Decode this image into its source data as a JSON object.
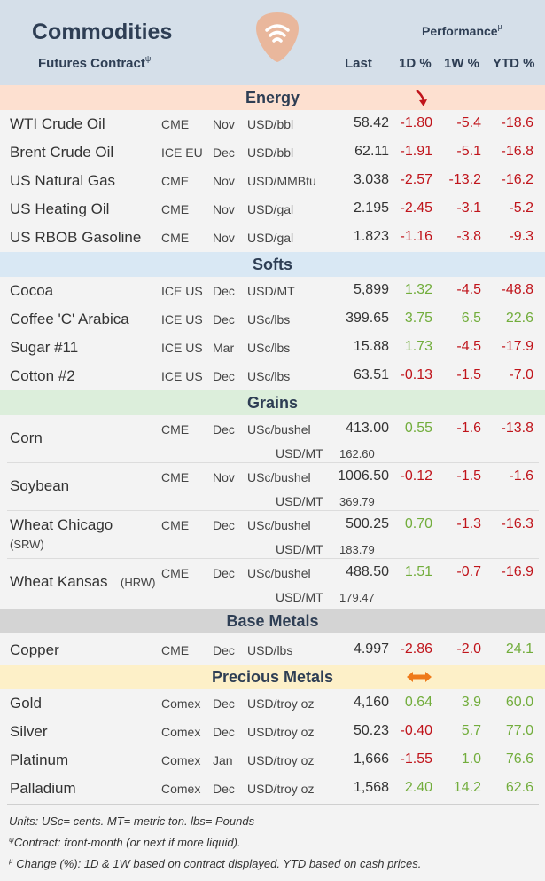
{
  "header": {
    "title": "Commodities",
    "subtitle": "Futures Contract",
    "subtitle_mark": "ψ",
    "performance_label": "Performance",
    "performance_mark": "µ",
    "col_last": "Last",
    "col_1d": "1D %",
    "col_1w": "1W %",
    "col_ytd": "YTD %"
  },
  "sections": {
    "energy": "Energy",
    "softs": "Softs",
    "grains": "Grains",
    "base": "Base Metals",
    "precious": "Precious Metals"
  },
  "energy": [
    {
      "name": "WTI Crude Oil",
      "exchange": "CME",
      "month": "Nov",
      "unit": "USD/bbl",
      "last": "58.42",
      "d1": "-1.80",
      "w1": "-5.4",
      "ytd": "-18.6"
    },
    {
      "name": "Brent Crude Oil",
      "exchange": "ICE EU",
      "month": "Dec",
      "unit": "USD/bbl",
      "last": "62.11",
      "d1": "-1.91",
      "w1": "-5.1",
      "ytd": "-16.8"
    },
    {
      "name": "US Natural Gas",
      "exchange": "CME",
      "month": "Nov",
      "unit": "USD/MMBtu",
      "last": "3.038",
      "d1": "-2.57",
      "w1": "-13.2",
      "ytd": "-16.2"
    },
    {
      "name": "US Heating Oil",
      "exchange": "CME",
      "month": "Nov",
      "unit": "USD/gal",
      "last": "2.195",
      "d1": "-2.45",
      "w1": "-3.1",
      "ytd": "-5.2"
    },
    {
      "name": "US RBOB Gasoline",
      "exchange": "CME",
      "month": "Nov",
      "unit": "USD/gal",
      "last": "1.823",
      "d1": "-1.16",
      "w1": "-3.8",
      "ytd": "-9.3"
    }
  ],
  "softs": [
    {
      "name": "Cocoa",
      "exchange": "ICE US",
      "month": "Dec",
      "unit": "USD/MT",
      "last": "5,899",
      "d1": "1.32",
      "w1": "-4.5",
      "ytd": "-48.8"
    },
    {
      "name": "Coffee 'C' Arabica",
      "exchange": "ICE US",
      "month": "Dec",
      "unit": "USc/lbs",
      "last": "399.65",
      "d1": "3.75",
      "w1": "6.5",
      "ytd": "22.6"
    },
    {
      "name": "Sugar #11",
      "exchange": "ICE US",
      "month": "Mar",
      "unit": "USc/lbs",
      "last": "15.88",
      "d1": "1.73",
      "w1": "-4.5",
      "ytd": "-17.9"
    },
    {
      "name": "Cotton #2",
      "exchange": "ICE US",
      "month": "Dec",
      "unit": "USc/lbs",
      "last": "63.51",
      "d1": "-0.13",
      "w1": "-1.5",
      "ytd": "-7.0"
    }
  ],
  "grains": [
    {
      "name": "Corn",
      "name2": "",
      "exchange": "CME",
      "month": "Dec",
      "unit": "USc/bushel",
      "last": "413.00",
      "unit2": "USD/MT",
      "last2": "162.60",
      "d1": "0.55",
      "w1": "-1.6",
      "ytd": "-13.8"
    },
    {
      "name": "Soybean",
      "name2": "",
      "exchange": "CME",
      "month": "Nov",
      "unit": "USc/bushel",
      "last": "1006.50",
      "unit2": "USD/MT",
      "last2": "369.79",
      "d1": "-0.12",
      "w1": "-1.5",
      "ytd": "-1.6"
    },
    {
      "name": "Wheat Chicago",
      "name2": "(SRW)",
      "exchange": "CME",
      "month": "Dec",
      "unit": "USc/bushel",
      "last": "500.25",
      "unit2": "USD/MT",
      "last2": "183.79",
      "d1": "0.70",
      "w1": "-1.3",
      "ytd": "-16.3"
    },
    {
      "name": "Wheat Kansas",
      "name2": "(HRW)",
      "exchange": "CME",
      "month": "Dec",
      "unit": "USc/bushel",
      "last": "488.50",
      "unit2": "USD/MT",
      "last2": "179.47",
      "d1": "1.51",
      "w1": "-0.7",
      "ytd": "-16.9"
    }
  ],
  "base": [
    {
      "name": "Copper",
      "exchange": "CME",
      "month": "Dec",
      "unit": "USD/lbs",
      "last": "4.997",
      "d1": "-2.86",
      "w1": "-2.0",
      "ytd": "24.1"
    }
  ],
  "precious": [
    {
      "name": "Gold",
      "exchange": "Comex",
      "month": "Dec",
      "unit": "USD/troy oz",
      "last": "4,160",
      "d1": "0.64",
      "w1": "3.9",
      "ytd": "60.0"
    },
    {
      "name": "Silver",
      "exchange": "Comex",
      "month": "Dec",
      "unit": "USD/troy oz",
      "last": "50.23",
      "d1": "-0.40",
      "w1": "5.7",
      "ytd": "77.0"
    },
    {
      "name": "Platinum",
      "exchange": "Comex",
      "month": "Jan",
      "unit": "USD/troy oz",
      "last": "1,666",
      "d1": "-1.55",
      "w1": "1.0",
      "ytd": "76.6"
    },
    {
      "name": "Palladium",
      "exchange": "Comex",
      "month": "Dec",
      "unit": "USD/troy oz",
      "last": "1,568",
      "d1": "2.40",
      "w1": "14.2",
      "ytd": "62.6"
    }
  ],
  "footer": {
    "units": "Units: USc= cents.  MT= metric ton.  lbs= Pounds",
    "contract_mark": "ψ",
    "contract": "Contract: front-month (or next if more liquid).",
    "change_mark": "µ",
    "change": " Change (%): 1D & 1W based on contract displayed. YTD based on cash prices."
  },
  "colors": {
    "negative": "#c0141b",
    "positive": "#72ad3c",
    "energy_band": "#fde0d0",
    "softs_band": "#d9e8f4",
    "grains_band": "#dceedb",
    "base_band": "#d4d4d4",
    "precious_band": "#fdf0c8"
  },
  "icons": {
    "logo": "guitar-pick-wifi-logo",
    "energy_trend": "down-arrow-icon",
    "precious_trend": "left-right-arrow-icon"
  }
}
